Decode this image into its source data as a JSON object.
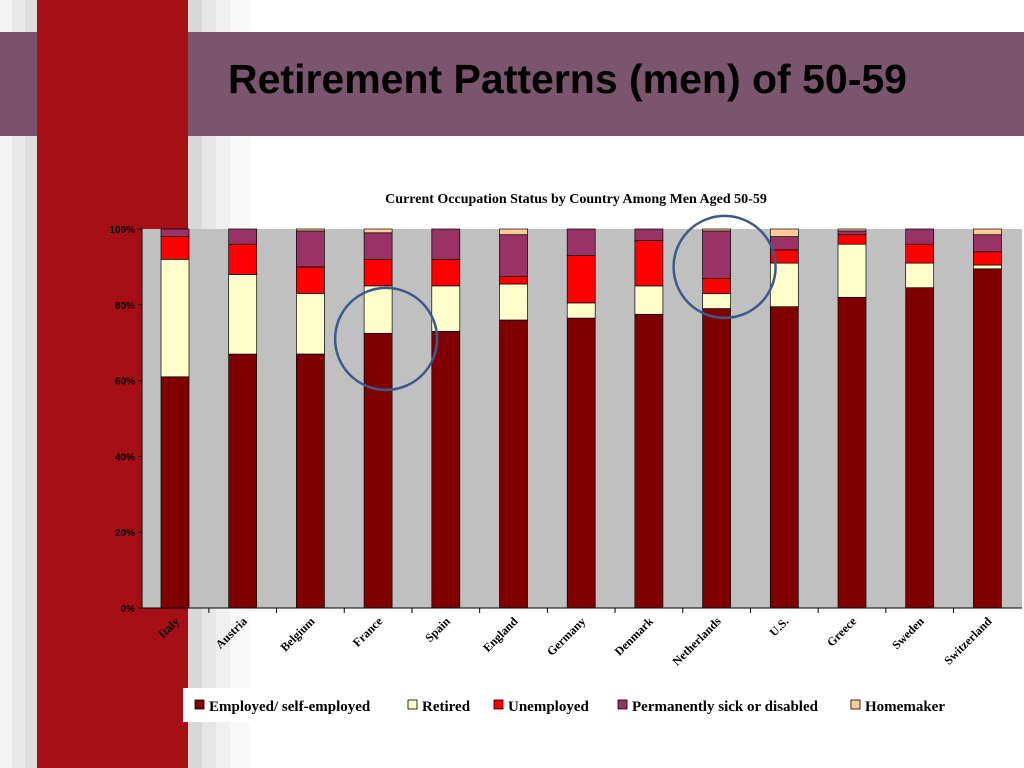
{
  "slide": {
    "title": "Retirement Patterns (men) of 50-59"
  },
  "colors": {
    "left_bar": "#a50f15",
    "title_band": "#7b546d",
    "plot_background": "#c0c0c0",
    "annotation_circle": "#3b5a8c"
  },
  "chart_data": {
    "type": "bar",
    "stacked": true,
    "title": "Current Occupation Status by Country Among Men Aged 50-59",
    "categories": [
      "Italy",
      "Austria",
      "Belgium",
      "France",
      "Spain",
      "England",
      "Germany",
      "Denmark",
      "Netherlands",
      "U.S.",
      "Greece",
      "Sweden",
      "Switzerland"
    ],
    "y_ticks": [
      "0%",
      "20%",
      "40%",
      "60%",
      "80%",
      "100%"
    ],
    "ylim": [
      0,
      100
    ],
    "legend_position": "bottom",
    "series": [
      {
        "name": "Employed/ self-employed",
        "color": "#800000",
        "values": [
          61,
          67,
          67,
          72.5,
          73,
          76,
          76.5,
          77.5,
          79,
          79.5,
          82,
          84.5,
          89.5
        ]
      },
      {
        "name": "Retired",
        "color": "#ffffcc",
        "values": [
          31,
          21,
          16,
          12.5,
          12,
          9.5,
          4,
          7.5,
          4,
          11.5,
          14,
          6.5,
          1
        ]
      },
      {
        "name": "Unemployed",
        "color": "#ff0000",
        "values": [
          6,
          8,
          7,
          7,
          7,
          2,
          12.5,
          12,
          4,
          3.5,
          2.5,
          5,
          3.5
        ]
      },
      {
        "name": "Permanently sick or disabled",
        "color": "#993366",
        "values": [
          2,
          4,
          9.5,
          7,
          8,
          11,
          7,
          3,
          12.5,
          3.5,
          1,
          4,
          4.5
        ]
      },
      {
        "name": "Homemaker",
        "color": "#ffcc99",
        "values": [
          0,
          0,
          0.5,
          1,
          0,
          1.5,
          0,
          0,
          0.5,
          2,
          0.5,
          0,
          1.5
        ]
      }
    ],
    "annotations": [
      {
        "shape": "circle",
        "category": "France",
        "y": 71
      },
      {
        "shape": "circle",
        "category": "Netherlands",
        "y": 90
      }
    ]
  }
}
